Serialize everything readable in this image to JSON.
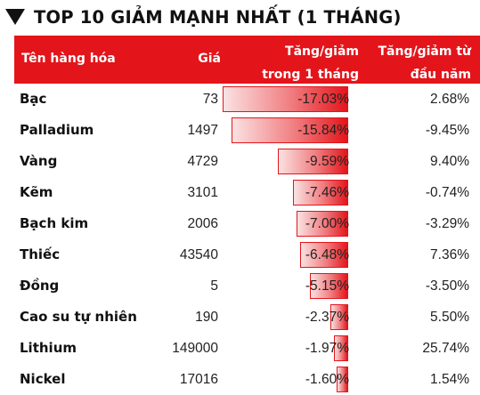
{
  "title": "TOP 10 GIẢM MẠNH NHẤT (1 THÁNG)",
  "header": {
    "name": "Tên hàng hóa",
    "price": "Giá",
    "change_1m_line1": "Tăng/giảm",
    "change_1m_line2": "trong 1 tháng",
    "change_ytd_line1": "Tăng/giảm từ",
    "change_ytd_line2": "đầu năm"
  },
  "colors": {
    "accent": "#e3151b",
    "text": "#111111",
    "background": "#ffffff"
  },
  "icons": {
    "title_marker": "down-triangle-icon"
  },
  "chart_data": {
    "type": "table",
    "columns": [
      "Tên hàng hóa",
      "Giá",
      "Tăng/giảm trong 1 tháng",
      "Tăng/giảm từ đầu năm"
    ],
    "rows": [
      {
        "name": "Bạc",
        "price": "73",
        "change_1m": -17.03,
        "change_1m_label": "-17.03%",
        "change_ytd": "2.68%"
      },
      {
        "name": "Palladium",
        "price": "1497",
        "change_1m": -15.84,
        "change_1m_label": "-15.84%",
        "change_ytd": "-9.45%"
      },
      {
        "name": "Vàng",
        "price": "4729",
        "change_1m": -9.59,
        "change_1m_label": "-9.59%",
        "change_ytd": "9.40%"
      },
      {
        "name": "Kẽm",
        "price": "3101",
        "change_1m": -7.46,
        "change_1m_label": "-7.46%",
        "change_ytd": "-0.74%"
      },
      {
        "name": "Bạch kim",
        "price": "2006",
        "change_1m": -7.0,
        "change_1m_label": "-7.00%",
        "change_ytd": "-3.29%"
      },
      {
        "name": "Thiếc",
        "price": "43540",
        "change_1m": -6.48,
        "change_1m_label": "-6.48%",
        "change_ytd": "7.36%"
      },
      {
        "name": "Đồng",
        "price": "5",
        "change_1m": -5.15,
        "change_1m_label": "-5.15%",
        "change_ytd": "-3.50%"
      },
      {
        "name": "Cao su tự nhiên",
        "price": "190",
        "change_1m": -2.37,
        "change_1m_label": "-2.37%",
        "change_ytd": "5.50%"
      },
      {
        "name": "Lithium",
        "price": "149000",
        "change_1m": -1.97,
        "change_1m_label": "-1.97%",
        "change_ytd": "25.74%"
      },
      {
        "name": "Nickel",
        "price": "17016",
        "change_1m": -1.6,
        "change_1m_label": "-1.60%",
        "change_ytd": "1.54%"
      }
    ]
  }
}
